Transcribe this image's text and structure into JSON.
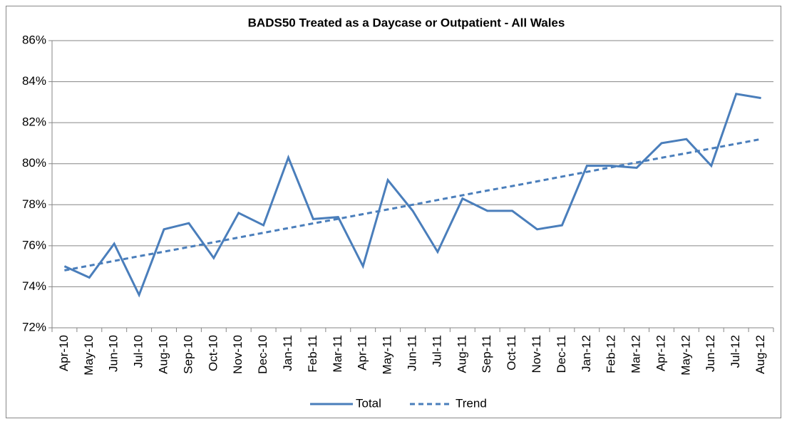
{
  "chart_data": {
    "type": "line",
    "title": "BADS50 Treated as a Daycase or Outpatient - All Wales",
    "categories": [
      "Apr-10",
      "May-10",
      "Jun-10",
      "Jul-10",
      "Aug-10",
      "Sep-10",
      "Oct-10",
      "Nov-10",
      "Dec-10",
      "Jan-11",
      "Feb-11",
      "Mar-11",
      "Apr-11",
      "May-11",
      "Jun-11",
      "Jul-11",
      "Aug-11",
      "Sep-11",
      "Oct-11",
      "Nov-11",
      "Dec-11",
      "Jan-12",
      "Feb-12",
      "Mar-12",
      "Apr-12",
      "May-12",
      "Jun-12",
      "Jul-12",
      "Aug-12"
    ],
    "series": [
      {
        "name": "Total",
        "color": "#4a7ebb",
        "line_style": "solid",
        "values": [
          75.0,
          74.45,
          76.1,
          73.6,
          76.8,
          77.1,
          75.4,
          77.6,
          77.0,
          80.3,
          77.3,
          77.4,
          75.0,
          79.2,
          77.7,
          75.7,
          78.3,
          77.7,
          77.7,
          76.8,
          77.0,
          79.9,
          79.9,
          79.8,
          81.0,
          81.2,
          79.9,
          83.4,
          83.2
        ]
      },
      {
        "name": "Trend",
        "color": "#4a7ebb",
        "line_style": "dashed",
        "values": [
          74.8,
          75.03,
          75.26,
          75.49,
          75.71,
          75.94,
          76.17,
          76.4,
          76.63,
          76.86,
          77.09,
          77.31,
          77.54,
          77.77,
          78.0,
          78.23,
          78.46,
          78.69,
          78.91,
          79.14,
          79.37,
          79.6,
          79.83,
          80.06,
          80.29,
          80.51,
          80.74,
          80.97,
          81.2
        ]
      }
    ],
    "ylim": [
      72,
      86
    ],
    "yticks": [
      {
        "value": 72,
        "label": "72%"
      },
      {
        "value": 74,
        "label": "74%"
      },
      {
        "value": 76,
        "label": "76%"
      },
      {
        "value": 78,
        "label": "78%"
      },
      {
        "value": 80,
        "label": "80%"
      },
      {
        "value": 82,
        "label": "82%"
      },
      {
        "value": 84,
        "label": "84%"
      },
      {
        "value": 86,
        "label": "86%"
      }
    ],
    "grid": true,
    "legend": "bottom"
  }
}
